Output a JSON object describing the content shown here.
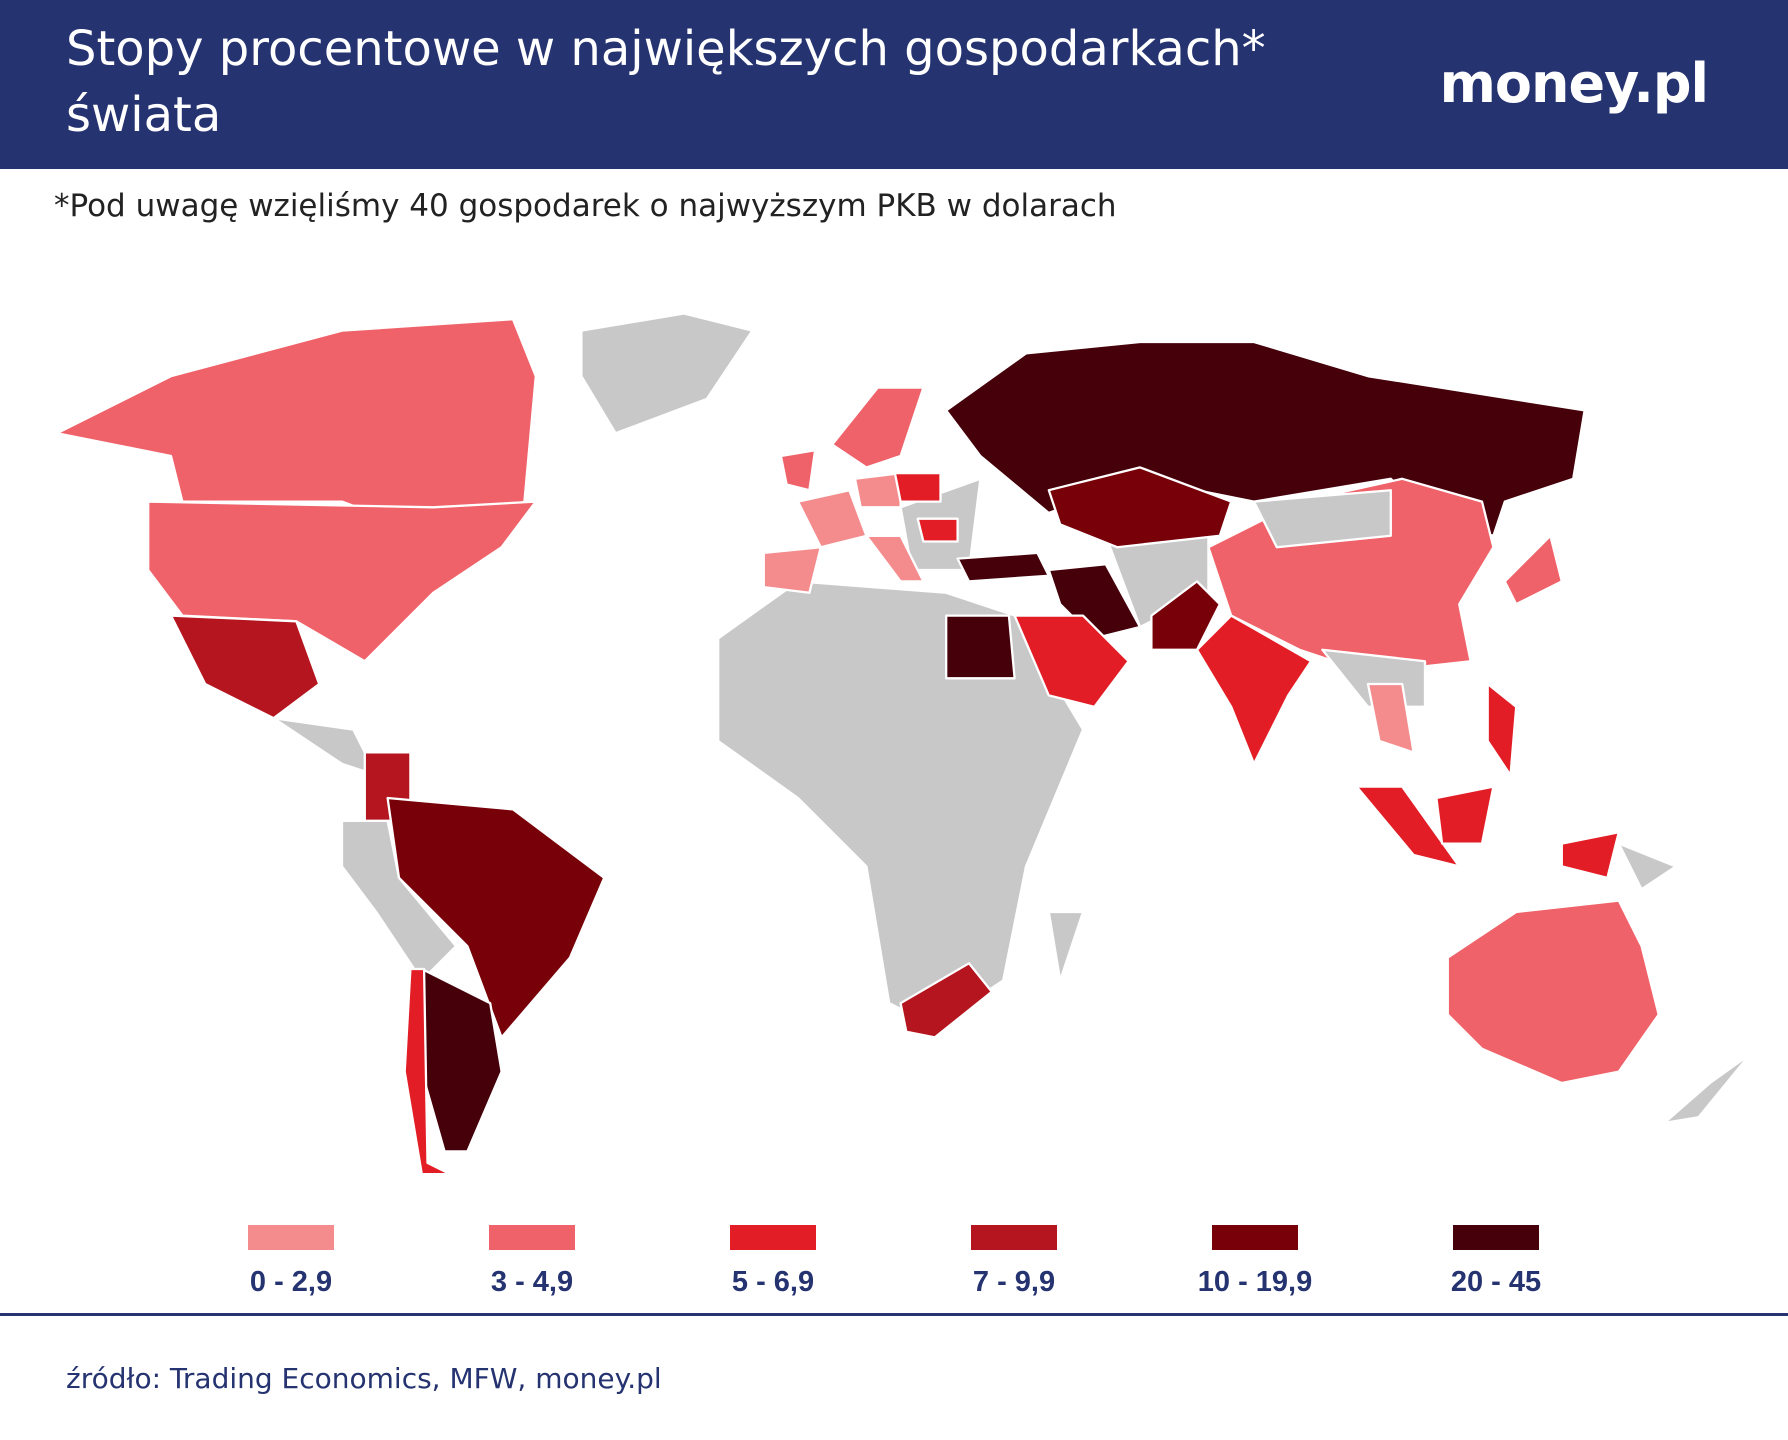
{
  "header": {
    "title": "Stopy procentowe w największych gospodarkach* świata",
    "logo": "money.pl"
  },
  "subtitle": "*Pod uwagę wzięliśmy 40 gospodarek o najwyższym PKB w dolarach",
  "legend": [
    {
      "label": "0 - 2,9",
      "color": "#f48c8e"
    },
    {
      "label": "3 - 4,9",
      "color": "#f06269"
    },
    {
      "label": "5 - 6,9",
      "color": "#e31d25"
    },
    {
      "label": "7 - 9,9",
      "color": "#b5151e"
    },
    {
      "label": "10 - 19,9",
      "color": "#780009"
    },
    {
      "label": "20 - 45",
      "color": "#45000a"
    }
  ],
  "source": "źródło: Trading Economics, MFW, money.pl"
}
